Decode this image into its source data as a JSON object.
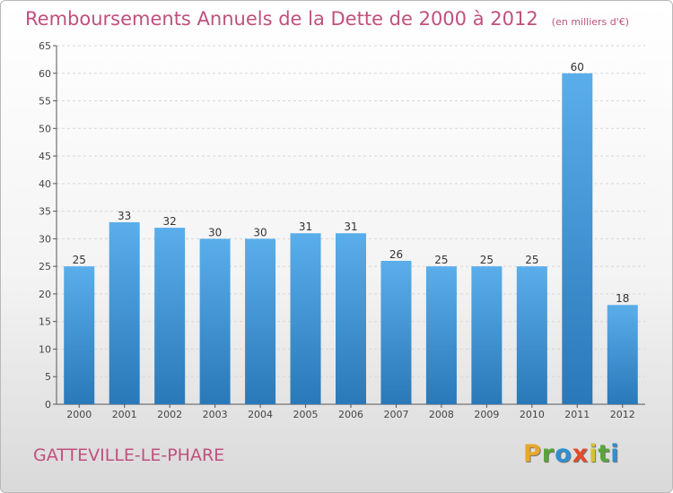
{
  "title": "Remboursements Annuels de la Dette de 2000 à 2012",
  "subtitle": "(en milliers d'€)",
  "city": "GATTEVILLE-LE-PHARE",
  "logo": {
    "letters": [
      "P",
      "r",
      "o",
      "x",
      "i",
      "t",
      "i"
    ],
    "colors": [
      "#e8a72a",
      "#5aa43c",
      "#2f8fd0",
      "#e24a2a",
      "#d3c23a",
      "#5aa43c",
      "#2f8fd0"
    ]
  },
  "colors": {
    "bar_light": "#5aaeea",
    "bar_dark": "#2a78b8",
    "grid": "#d8d8d8",
    "text_accent": "#c0507d"
  },
  "chart_data": {
    "type": "bar",
    "categories": [
      "2000",
      "2001",
      "2002",
      "2003",
      "2004",
      "2005",
      "2006",
      "2007",
      "2008",
      "2009",
      "2010",
      "2011",
      "2012"
    ],
    "values": [
      25,
      33,
      32,
      30,
      30,
      31,
      31,
      26,
      25,
      25,
      25,
      60,
      18
    ],
    "ylim": [
      0,
      65
    ],
    "yticks": [
      0,
      5,
      10,
      15,
      20,
      25,
      30,
      35,
      40,
      45,
      50,
      55,
      60,
      65
    ],
    "grid": true
  }
}
